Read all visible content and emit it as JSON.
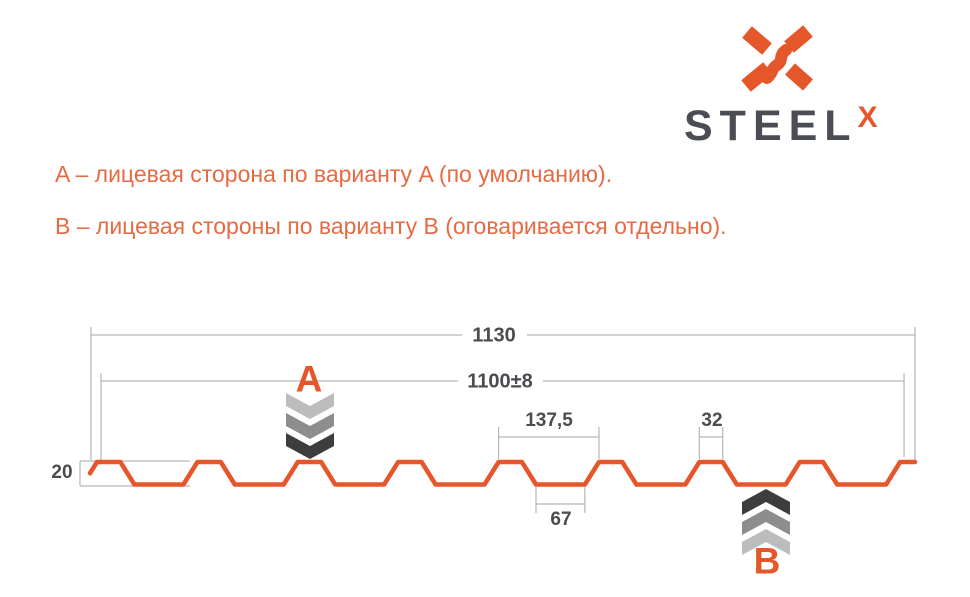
{
  "brand": {
    "name": "STEEL",
    "mark": "X"
  },
  "notes": {
    "line_a": "A – лицевая сторона по варианту A (по умолчанию).",
    "line_b": "B – лицевая стороны по варианту B (оговаривается отдельно)."
  },
  "diagram": {
    "labels": {
      "overall_width": "1130",
      "cover_width": "1100±8",
      "pitch": "137,5",
      "crest": "32",
      "valley": "67",
      "height": "20"
    },
    "markers": {
      "a": "A",
      "b": "B"
    },
    "profile_mm": {
      "total_width": 1130,
      "cover_width": 1100,
      "cover_tolerance": 8,
      "pitch": 137.5,
      "crest_width": 32,
      "valley_width": 67,
      "height": 20,
      "ribs": 9
    }
  },
  "colors": {
    "accent": "#e6562b",
    "note": "#e66a42",
    "steel": "#4a4e54",
    "dim_line": "#b6b6b6",
    "dim_text": "#4b4b50",
    "chevron_light": "#bcbcbc",
    "chevron_mid": "#8d8d8d",
    "chevron_dark": "#3d3d3d"
  }
}
